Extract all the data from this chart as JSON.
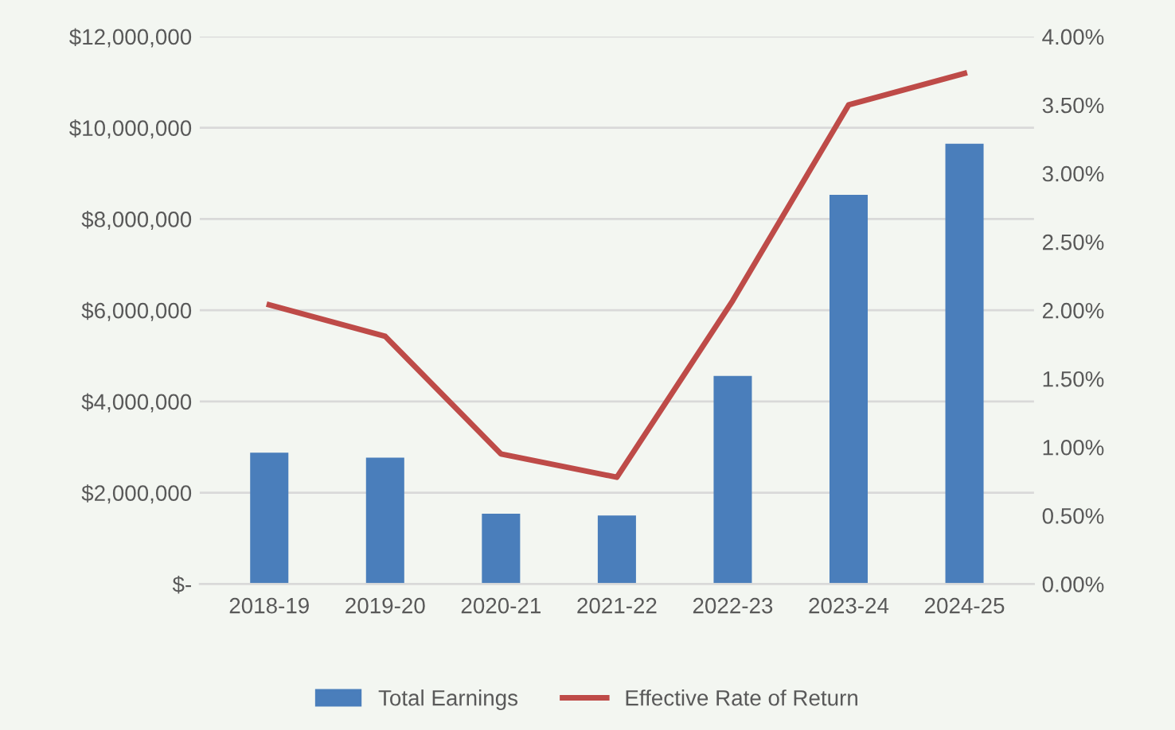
{
  "chart_data": {
    "type": "bar",
    "categories": [
      "2018-19",
      "2019-20",
      "2020-21",
      "2021-22",
      "2022-23",
      "2023-24",
      "2024-25"
    ],
    "series": [
      {
        "name": "Total Earnings",
        "color": "#4a7ebb",
        "values": [
          2880000,
          2770000,
          1540000,
          1500000,
          4560000,
          8530000,
          9650000
        ]
      },
      {
        "name": "Effective Rate of Return",
        "type": "line",
        "axis": "y2",
        "color": "#be4b48",
        "values": [
          2.04,
          1.81,
          0.95,
          0.78,
          2.07,
          3.5,
          3.73
        ]
      }
    ],
    "ylim": [
      0,
      12000000
    ],
    "yticks": [
      {
        "value": 0,
        "label": "$-"
      },
      {
        "value": 2000000,
        "label": "$2,000,000"
      },
      {
        "value": 4000000,
        "label": "$4,000,000"
      },
      {
        "value": 6000000,
        "label": "$6,000,000"
      },
      {
        "value": 8000000,
        "label": "$8,000,000"
      },
      {
        "value": 10000000,
        "label": "$10,000,000"
      },
      {
        "value": 12000000,
        "label": "$12,000,000"
      }
    ],
    "y2lim": [
      0,
      4
    ],
    "y2ticks": [
      {
        "value": 0,
        "label": "0.00%"
      },
      {
        "value": 0.5,
        "label": "0.50%"
      },
      {
        "value": 1,
        "label": "1.00%"
      },
      {
        "value": 1.5,
        "label": "1.50%"
      },
      {
        "value": 2,
        "label": "2.00%"
      },
      {
        "value": 2.5,
        "label": "2.50%"
      },
      {
        "value": 3,
        "label": "3.00%"
      },
      {
        "value": 3.5,
        "label": "3.50%"
      },
      {
        "value": 4,
        "label": "4.00%"
      }
    ],
    "grid": "y",
    "legend": "bottom",
    "marker": "none",
    "line_style": "solid"
  }
}
